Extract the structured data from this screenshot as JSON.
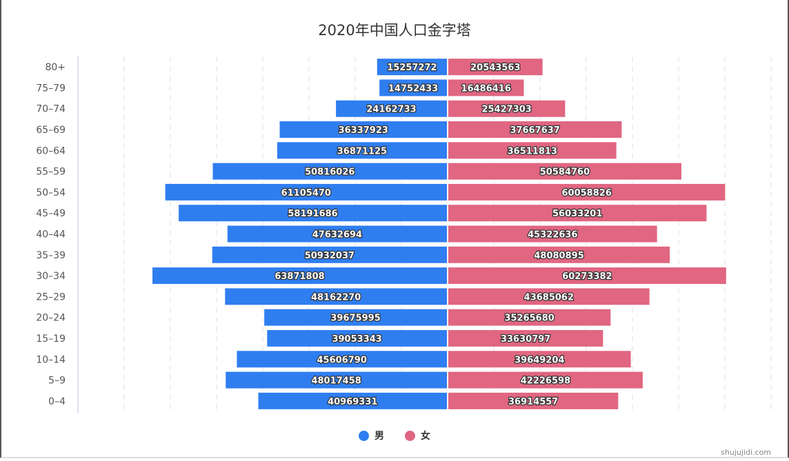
{
  "chart_data": {
    "type": "bar",
    "orientation": "horizontal-population-pyramid",
    "title": "2020年中国人口金字塔",
    "categories": [
      "80+",
      "75-79",
      "70-74",
      "65-69",
      "60-64",
      "55-59",
      "50-54",
      "45-49",
      "40-44",
      "35-39",
      "30-34",
      "25-29",
      "20-24",
      "15-19",
      "10-14",
      "5-9",
      "0-4"
    ],
    "series": [
      {
        "name": "男",
        "color": "#2f7ef0",
        "side": "left",
        "values": [
          15257272,
          14752433,
          24162733,
          36337923,
          36871125,
          50816026,
          61105470,
          58191686,
          47632694,
          50932037,
          63871808,
          48162270,
          39675995,
          39053343,
          45606790,
          48017458,
          40969331
        ]
      },
      {
        "name": "女",
        "color": "#e06681",
        "side": "right",
        "values": [
          20543563,
          16486416,
          25427303,
          37667637,
          36511813,
          50584760,
          60058826,
          56033201,
          45322636,
          48080895,
          60273382,
          43685062,
          35265680,
          33630797,
          39649204,
          42226598,
          36914557
        ]
      }
    ],
    "xlim": [
      -80000000,
      70000000
    ],
    "grid": true,
    "legend_position": "bottom-center"
  },
  "watermark": "shujujidi.com"
}
